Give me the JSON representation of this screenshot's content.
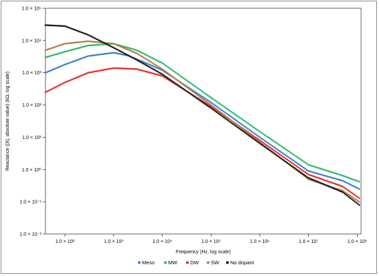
{
  "chart_data": {
    "type": "scatter",
    "title": "",
    "xlabel": "Frequency (Hz, log scale)",
    "ylabel": "Reactance (|X|, absolute value) (kΩ, log scale)",
    "x_scale": "log",
    "y_scale": "log",
    "xlim": [
      40,
      120000000
    ],
    "ylim": [
      0.01,
      100000
    ],
    "x_ticks": [
      100,
      1000,
      10000,
      100000,
      1000000,
      10000000,
      100000000
    ],
    "x_tick_labels": [
      "1.0 × 10²",
      "1.0 × 10³",
      "1.0 × 10⁴",
      "1.0 × 10⁵",
      "1.0 × 10⁶",
      "1.0 × 10⁷",
      "1.0 × 10⁸"
    ],
    "y_ticks": [
      0.01,
      0.1,
      1,
      10,
      100,
      1000,
      10000,
      100000
    ],
    "y_tick_labels": [
      "1.0 × 10⁻²",
      "1.0 × 10⁻¹",
      "1.0 × 10⁰",
      "1.0 × 10¹",
      "1.0 × 10²",
      "1.0 × 10³",
      "1.0 × 10⁴",
      "1.0 × 10⁵"
    ],
    "grid": false,
    "legend_position": "bottom",
    "series": [
      {
        "name": "Meso",
        "color": "#3a7fc4",
        "x": [
          40,
          100,
          300,
          1000,
          2000,
          5000,
          10000,
          100000,
          1000000,
          10000000,
          50000000,
          110000000
        ],
        "y": [
          1000,
          1800,
          3300,
          4200,
          3400,
          1900,
          1200,
          120,
          10,
          0.9,
          0.45,
          0.25
        ]
      },
      {
        "name": "MW",
        "color": "#2cb86b",
        "x": [
          40,
          100,
          300,
          1000,
          3000,
          10000,
          100000,
          1000000,
          10000000,
          50000000,
          110000000
        ],
        "y": [
          3000,
          4500,
          7000,
          8000,
          5000,
          2000,
          170,
          15,
          1.4,
          0.65,
          0.42
        ]
      },
      {
        "name": "DW",
        "color": "#e52b2b",
        "x": [
          40,
          100,
          300,
          1000,
          3000,
          10000,
          100000,
          1000000,
          10000000,
          50000000,
          110000000
        ],
        "y": [
          250,
          500,
          1000,
          1400,
          1300,
          800,
          90,
          8,
          0.7,
          0.3,
          0.13
        ]
      },
      {
        "name": "SW",
        "color": "#b07d48",
        "x": [
          40,
          100,
          300,
          1000,
          3000,
          10000,
          100000,
          1000000,
          10000000,
          50000000,
          110000000
        ],
        "y": [
          5000,
          8000,
          9500,
          8000,
          4000,
          1300,
          100,
          7,
          0.5,
          0.22,
          0.1
        ]
      },
      {
        "name": "No dopant",
        "color": "#1a1a1a",
        "x": [
          40,
          100,
          300,
          1000,
          3000,
          10000,
          100000,
          1000000,
          10000000,
          50000000,
          110000000
        ],
        "y": [
          30000,
          28000,
          15000,
          6000,
          2500,
          900,
          80,
          6.5,
          0.55,
          0.2,
          0.08
        ]
      }
    ]
  }
}
